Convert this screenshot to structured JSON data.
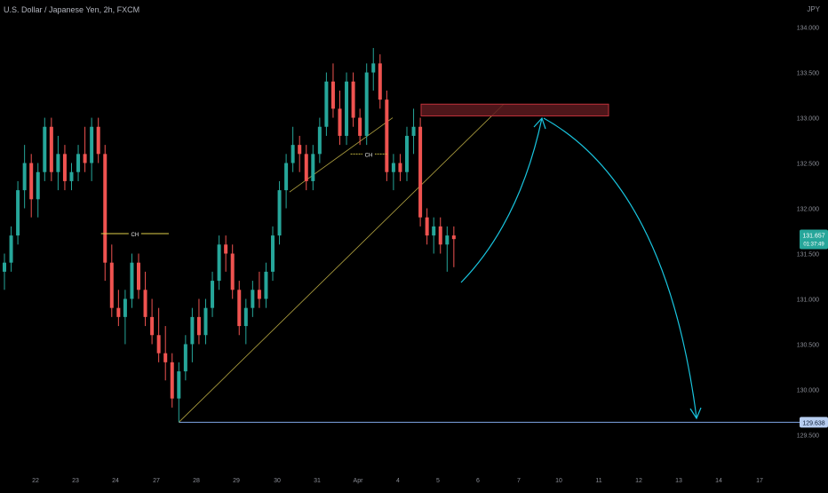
{
  "header": {
    "symbol": "U.S. Dollar / Japanese Yen, 2h, FXCM",
    "currency": "JPY"
  },
  "colors": {
    "up": "#26a69a",
    "down": "#ef5350",
    "wick_up": "#26a69a",
    "wick_down": "#ef5350",
    "axis_text": "#8a8d96",
    "trend": "#b5a642",
    "ch": "#e0d14a",
    "level": "#7fa6e6",
    "arrow": "#19c6e0",
    "zone_fill": "#5a1a1f",
    "zone_stroke": "#c0313a",
    "price_badge": "#26a69a"
  },
  "chart_data": {
    "type": "candlestick",
    "y_range": [
      129.2,
      134.3
    ],
    "y_ticks": [
      "134.000",
      "133.500",
      "133.000",
      "132.500",
      "132.000",
      "131.500",
      "131.000",
      "130.500",
      "130.000",
      "129.500"
    ],
    "y_tick_values": [
      134.0,
      133.5,
      133.0,
      132.5,
      132.0,
      131.5,
      131.0,
      130.5,
      130.0,
      129.5
    ],
    "x_ticks": [
      "22",
      "23",
      "24",
      "27",
      "28",
      "29",
      "30",
      "31",
      "Apr",
      "4",
      "5",
      "6",
      "7",
      "10",
      "11",
      "12",
      "13",
      "14",
      "17"
    ],
    "current_price": "131.657",
    "countdown": "01:37:49",
    "level_label": "129.638",
    "level_value": 129.638,
    "ch_labels": [
      "CH",
      "CH"
    ],
    "supply_zone": {
      "top": 133.15,
      "bottom": 133.02
    },
    "candles": [
      [
        131.3,
        131.5,
        131.1,
        131.4
      ],
      [
        131.4,
        131.8,
        131.3,
        131.7
      ],
      [
        131.7,
        132.3,
        131.6,
        132.2
      ],
      [
        132.2,
        132.7,
        132.0,
        132.5
      ],
      [
        132.5,
        132.6,
        131.9,
        132.1
      ],
      [
        132.1,
        132.5,
        131.9,
        132.4
      ],
      [
        132.4,
        133.0,
        132.3,
        132.9
      ],
      [
        132.9,
        133.0,
        132.3,
        132.4
      ],
      [
        132.4,
        132.8,
        132.2,
        132.6
      ],
      [
        132.6,
        132.7,
        132.2,
        132.3
      ],
      [
        132.3,
        132.5,
        132.2,
        132.4
      ],
      [
        132.4,
        132.7,
        132.3,
        132.6
      ],
      [
        132.6,
        132.9,
        132.4,
        132.5
      ],
      [
        132.5,
        133.0,
        132.3,
        132.9
      ],
      [
        132.9,
        133.0,
        132.5,
        132.6
      ],
      [
        132.6,
        132.7,
        131.2,
        131.4
      ],
      [
        131.4,
        131.6,
        130.8,
        130.9
      ],
      [
        130.9,
        131.1,
        130.7,
        130.8
      ],
      [
        130.8,
        131.1,
        130.5,
        131.0
      ],
      [
        131.0,
        131.5,
        130.9,
        131.4
      ],
      [
        131.4,
        131.5,
        131.0,
        131.1
      ],
      [
        131.1,
        131.3,
        130.7,
        130.8
      ],
      [
        130.8,
        131.0,
        130.5,
        130.6
      ],
      [
        130.6,
        130.9,
        130.3,
        130.4
      ],
      [
        130.4,
        130.7,
        130.1,
        130.3
      ],
      [
        130.3,
        130.4,
        129.8,
        129.9
      ],
      [
        129.9,
        130.3,
        129.64,
        130.2
      ],
      [
        130.2,
        130.6,
        130.1,
        130.5
      ],
      [
        130.5,
        130.9,
        130.3,
        130.8
      ],
      [
        130.8,
        131.0,
        130.5,
        130.6
      ],
      [
        130.6,
        131.0,
        130.5,
        130.9
      ],
      [
        130.9,
        131.3,
        130.8,
        131.2
      ],
      [
        131.2,
        131.7,
        131.1,
        131.6
      ],
      [
        131.6,
        131.7,
        131.3,
        131.5
      ],
      [
        131.5,
        131.6,
        131.0,
        131.1
      ],
      [
        131.1,
        131.2,
        130.6,
        130.7
      ],
      [
        130.7,
        131.0,
        130.5,
        130.9
      ],
      [
        130.9,
        131.2,
        130.8,
        131.1
      ],
      [
        131.1,
        131.3,
        130.9,
        131.0
      ],
      [
        131.0,
        131.4,
        130.9,
        131.3
      ],
      [
        131.3,
        131.8,
        131.2,
        131.7
      ],
      [
        131.7,
        132.3,
        131.6,
        132.2
      ],
      [
        132.2,
        132.6,
        132.0,
        132.5
      ],
      [
        132.5,
        132.9,
        132.4,
        132.7
      ],
      [
        132.7,
        132.8,
        132.4,
        132.6
      ],
      [
        132.6,
        132.7,
        132.2,
        132.3
      ],
      [
        132.3,
        132.7,
        132.2,
        132.6
      ],
      [
        132.6,
        133.0,
        132.5,
        132.9
      ],
      [
        132.9,
        133.5,
        132.8,
        133.4
      ],
      [
        133.4,
        133.6,
        133.0,
        133.1
      ],
      [
        133.1,
        133.3,
        132.7,
        132.8
      ],
      [
        132.8,
        133.5,
        132.7,
        133.4
      ],
      [
        133.4,
        133.5,
        132.9,
        133.0
      ],
      [
        133.0,
        133.1,
        132.7,
        132.8
      ],
      [
        132.8,
        133.6,
        132.7,
        133.5
      ],
      [
        133.5,
        133.77,
        133.3,
        133.6
      ],
      [
        133.6,
        133.7,
        133.1,
        133.2
      ],
      [
        133.2,
        133.3,
        132.3,
        132.4
      ],
      [
        132.4,
        132.6,
        132.2,
        132.5
      ],
      [
        132.5,
        132.6,
        132.3,
        132.4
      ],
      [
        132.4,
        132.9,
        132.3,
        132.8
      ],
      [
        132.8,
        133.1,
        132.6,
        132.9
      ],
      [
        132.9,
        133.0,
        131.8,
        131.9
      ],
      [
        131.9,
        132.0,
        131.6,
        131.7
      ],
      [
        131.7,
        131.9,
        131.5,
        131.8
      ],
      [
        131.8,
        131.9,
        131.5,
        131.6
      ],
      [
        131.6,
        131.8,
        131.3,
        131.7
      ],
      [
        131.7,
        131.8,
        131.35,
        131.66
      ]
    ]
  }
}
